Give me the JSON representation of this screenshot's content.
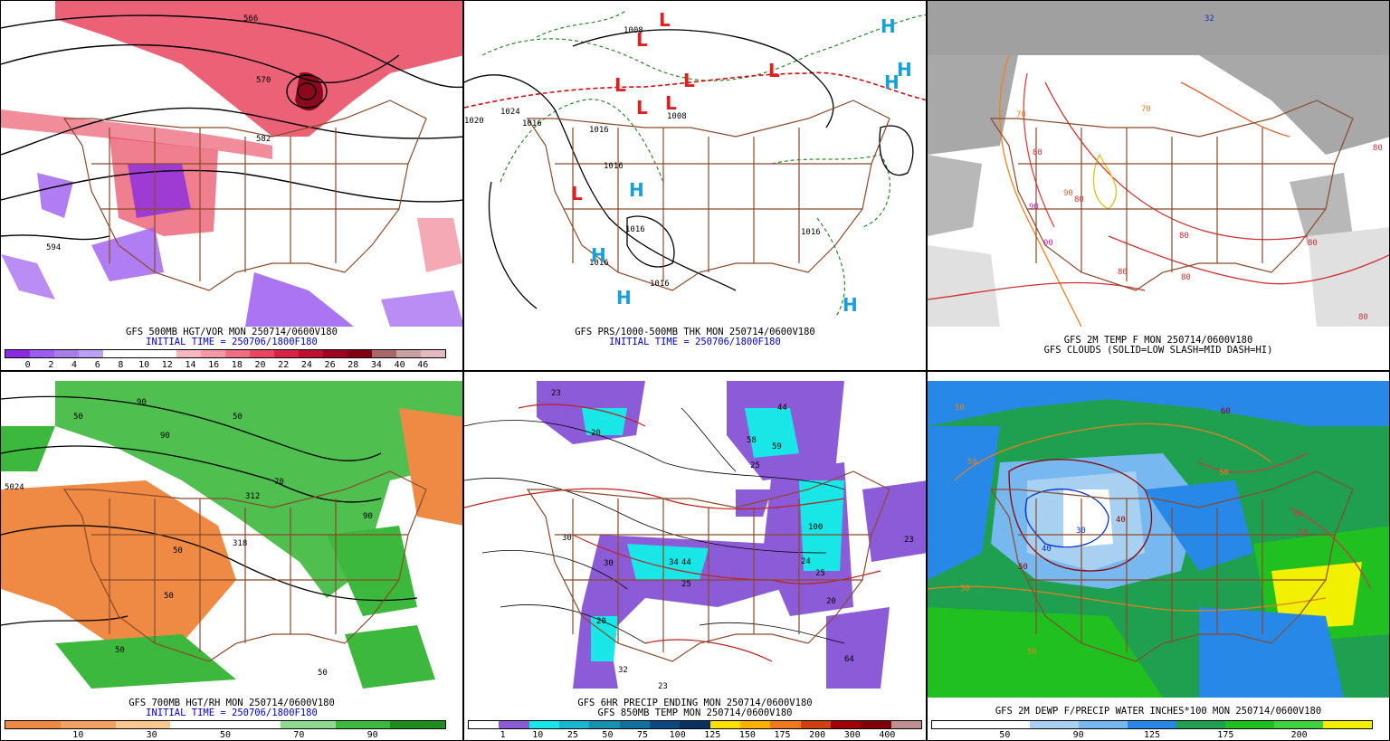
{
  "panels": {
    "p1": {
      "caption1": "GFS 500MB HGT/VOR MON 250714/0600V180",
      "caption2": "INITIAL TIME = 250706/1800F180",
      "contours": [
        "566",
        "570",
        "582",
        "594"
      ],
      "colorbar": {
        "colors": [
          "#8a2be2",
          "#9c5cf0",
          "#a77ee8",
          "#b9a0f0",
          "#ffffff",
          "#ffffff",
          "#ffffff",
          "#f7b8c0",
          "#f39aa6",
          "#ee6f82",
          "#e8475f",
          "#d82440",
          "#c01030",
          "#a00020",
          "#800010",
          "#a86868",
          "#c8a0a0",
          "#e6b8c0"
        ],
        "ticks": [
          "0",
          "2",
          "4",
          "6",
          "8",
          "10",
          "12",
          "14",
          "16",
          "18",
          "20",
          "22",
          "24",
          "26",
          "28",
          "34",
          "40",
          "46"
        ]
      }
    },
    "p2": {
      "caption1": "GFS PRS/1000-500MB THK MON 250714/0600V180",
      "caption2": "INITIAL TIME = 250706/1800F180",
      "isobars": [
        "1024",
        "1016",
        "1008",
        "1016",
        "1016",
        "1016",
        "1016",
        "1016",
        "1008",
        "1016",
        "1020"
      ],
      "highs": [
        "H",
        "H",
        "H",
        "H",
        "H",
        "H",
        "H"
      ],
      "lows": [
        "L",
        "L",
        "L",
        "L",
        "L",
        "L",
        "L",
        "L"
      ]
    },
    "p3": {
      "caption1": "GFS 2M TEMP F MON 250714/0600V180",
      "caption2": "GFS CLOUDS (SOLID=LOW SLASH=MID DASH=HI)",
      "labels": [
        "32",
        "70",
        "70",
        "80",
        "80",
        "90",
        "90",
        "80",
        "80",
        "80",
        "80",
        "80",
        "80",
        "90"
      ]
    },
    "p4": {
      "caption1": "GFS 700MB HGT/RH MON 250714/0600V180",
      "caption2": "INITIAL TIME = 250706/1800F180",
      "labels": [
        "90",
        "90",
        "90",
        "50",
        "50",
        "50",
        "50",
        "50",
        "50",
        "70",
        "5024",
        "312",
        "318"
      ],
      "colorbar": {
        "colors": [
          "#ee8a44",
          "#f0a060",
          "#f8c890",
          "#ffffff",
          "#ffffff",
          "#8fd88f",
          "#3cb83c",
          "#1e8c1e"
        ],
        "ticks": [
          "10",
          "30",
          "50",
          "70",
          "90"
        ]
      }
    },
    "p5": {
      "caption1": "GFS 6HR PRECIP ENDING MON 250714/0600V180",
      "caption2": "GFS 850MB TEMP MON 250714/0600V180",
      "labels": [
        "44",
        "58",
        "59",
        "25",
        "23",
        "100",
        "24",
        "25",
        "20",
        "34",
        "44",
        "25",
        "64",
        "23",
        "20",
        "23",
        "32",
        "20",
        "30",
        "30"
      ],
      "colorbar": {
        "colors": [
          "#ffffff",
          "#8c5cd8",
          "#19e6e6",
          "#1ab8d0",
          "#1890b0",
          "#1070a0",
          "#0a4a80",
          "#0a3060",
          "#ffe000",
          "#ffb000",
          "#f07820",
          "#d04010",
          "#a00000",
          "#800000",
          "#c09090"
        ],
        "ticks": [
          "1",
          "10",
          "25",
          "50",
          "75",
          "100",
          "125",
          "150",
          "175",
          "200",
          "300",
          "400"
        ]
      }
    },
    "p6": {
      "caption1": "GFS 2M DEWP F/PRECIP WATER INCHES*100 MON 250714/0600V180",
      "labels": [
        "50",
        "50",
        "40",
        "30",
        "50",
        "60",
        "60",
        "60",
        "50",
        "50",
        "40",
        "50"
      ],
      "colorbar": {
        "colors": [
          "#ffffff",
          "#ffffff",
          "#a8d0f0",
          "#78b8f0",
          "#2888e8",
          "#1ea050",
          "#20c020",
          "#40d040",
          "#f0f000"
        ],
        "ticks": [
          "50",
          "90",
          "125",
          "175",
          "200"
        ]
      }
    }
  }
}
